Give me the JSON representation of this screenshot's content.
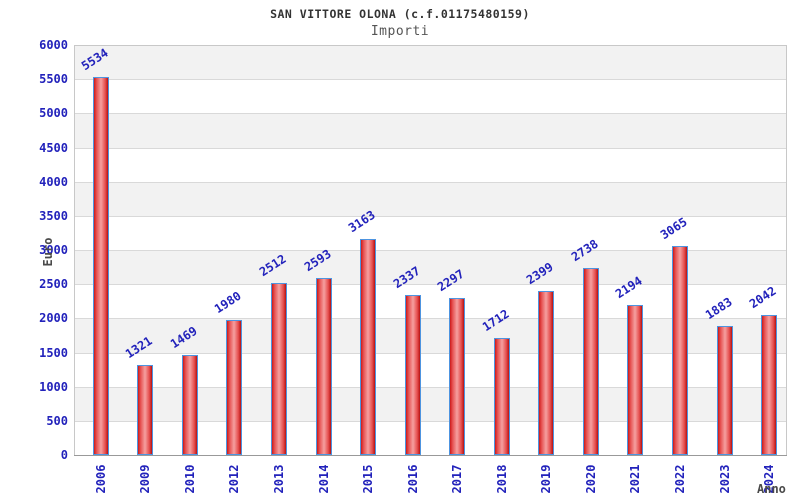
{
  "page": {
    "background": "#ffffff"
  },
  "chart_data": {
    "type": "bar",
    "title": "SAN VITTORE OLONA (c.f.01175480159)",
    "subtitle": "Importi",
    "xlabel": "Anno",
    "ylabel": "Euro",
    "categories": [
      "2006",
      "2009",
      "2010",
      "2012",
      "2013",
      "2014",
      "2015",
      "2016",
      "2017",
      "2018",
      "2019",
      "2020",
      "2021",
      "2022",
      "2023",
      "2024"
    ],
    "values": [
      5534,
      1321,
      1469,
      1980,
      2512,
      2593,
      3163,
      2337,
      2297,
      1712,
      2399,
      2738,
      2194,
      3065,
      1883,
      2042
    ],
    "ylim": [
      0,
      6000
    ],
    "ytick_step": 500,
    "grid": "horizontal-bands-alternating",
    "legend": "none",
    "bar_value_labels_rotated": true,
    "x_labels_rotated_90": true,
    "colors": {
      "label_blue": "#2222bb",
      "bar_edge_red": "#cc1a1a",
      "bar_mid_red": "#e65050",
      "bar_center_pink": "#f5a0a0",
      "bar_dark_red": "#b81212",
      "bar_border_blue": "#4d94e0",
      "band_gray": "#f2f2f2",
      "band_white": "#ffffff",
      "gridline": "#d9d9d9",
      "plot_border": "#c8c8c8",
      "axis_line": "#999999",
      "title_color": "#333333",
      "subtitle_color": "#555555",
      "axis_title_color": "#4a4a4a"
    }
  }
}
